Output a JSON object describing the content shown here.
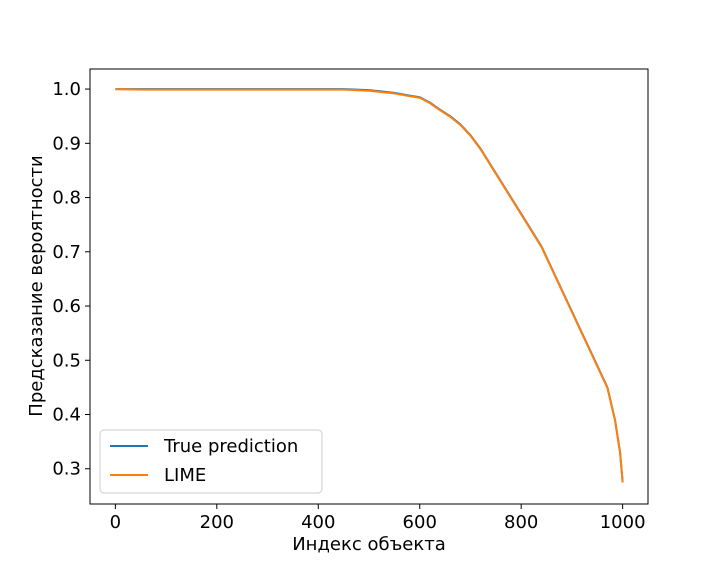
{
  "chart_data": {
    "type": "line",
    "title": "",
    "xlabel": "Индекс объекта",
    "ylabel": "Предсказание вероятности",
    "xlim": [
      -50,
      1050
    ],
    "ylim": [
      0.235,
      1.037
    ],
    "xticks": [
      0,
      200,
      400,
      600,
      800,
      1000
    ],
    "xtick_labels": [
      "0",
      "200",
      "400",
      "600",
      "800",
      "1000"
    ],
    "yticks": [
      0.3,
      0.4,
      0.5,
      0.6,
      0.7,
      0.8,
      0.9,
      1.0
    ],
    "ytick_labels": [
      "0.3",
      "0.4",
      "0.5",
      "0.6",
      "0.7",
      "0.8",
      "0.9",
      "1.0"
    ],
    "grid": false,
    "legend_position": "lower-left",
    "series": [
      {
        "name": "True prediction",
        "color": "#1f77b4",
        "x": [
          0,
          100,
          200,
          300,
          400,
          450,
          500,
          550,
          580,
          600,
          620,
          640,
          660,
          680,
          700,
          720,
          740,
          760,
          780,
          800,
          820,
          840,
          860,
          880,
          900,
          920,
          940,
          960,
          970,
          980,
          985,
          990,
          995,
          1000
        ],
        "y": [
          1.0,
          1.0,
          1.0,
          1.0,
          1.0,
          1.0,
          0.998,
          0.993,
          0.988,
          0.985,
          0.975,
          0.962,
          0.95,
          0.935,
          0.915,
          0.89,
          0.86,
          0.83,
          0.8,
          0.77,
          0.74,
          0.71,
          0.67,
          0.63,
          0.59,
          0.55,
          0.51,
          0.47,
          0.45,
          0.41,
          0.39,
          0.36,
          0.33,
          0.275
        ]
      },
      {
        "name": "LIME",
        "color": "#ff7f0e",
        "x": [
          0,
          50,
          100,
          150,
          200,
          250,
          300,
          350,
          400,
          450,
          500,
          550,
          580,
          600,
          620,
          640,
          660,
          680,
          700,
          720,
          740,
          760,
          780,
          800,
          820,
          840,
          860,
          880,
          900,
          920,
          940,
          960,
          970,
          980,
          985,
          990,
          995,
          1000
        ],
        "y": [
          1.0,
          0.999,
          0.999,
          0.999,
          0.999,
          0.999,
          0.999,
          0.999,
          0.999,
          0.999,
          0.997,
          0.992,
          0.987,
          0.984,
          0.974,
          0.961,
          0.949,
          0.934,
          0.914,
          0.889,
          0.859,
          0.829,
          0.799,
          0.769,
          0.739,
          0.709,
          0.669,
          0.629,
          0.589,
          0.549,
          0.509,
          0.469,
          0.449,
          0.409,
          0.389,
          0.359,
          0.329,
          0.275
        ]
      }
    ]
  }
}
